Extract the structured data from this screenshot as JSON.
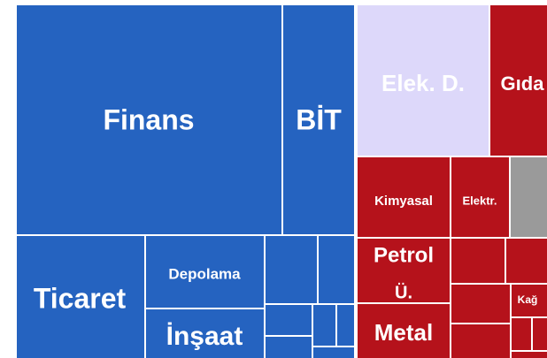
{
  "tiles": [
    {
      "label": "Finans"
    },
    {
      "label": "BİT"
    },
    {
      "label": "Ticaret"
    },
    {
      "label": "Depolama"
    },
    {
      "label": "İnşaat"
    },
    {
      "label": "Elek. D."
    },
    {
      "label": "Gıda"
    },
    {
      "label": "Kimyasal"
    },
    {
      "label": "Elektr."
    },
    {
      "label": "Petrol"
    },
    {
      "label": "Ü."
    },
    {
      "label": "Metal"
    },
    {
      "label": "Kağ"
    }
  ]
}
